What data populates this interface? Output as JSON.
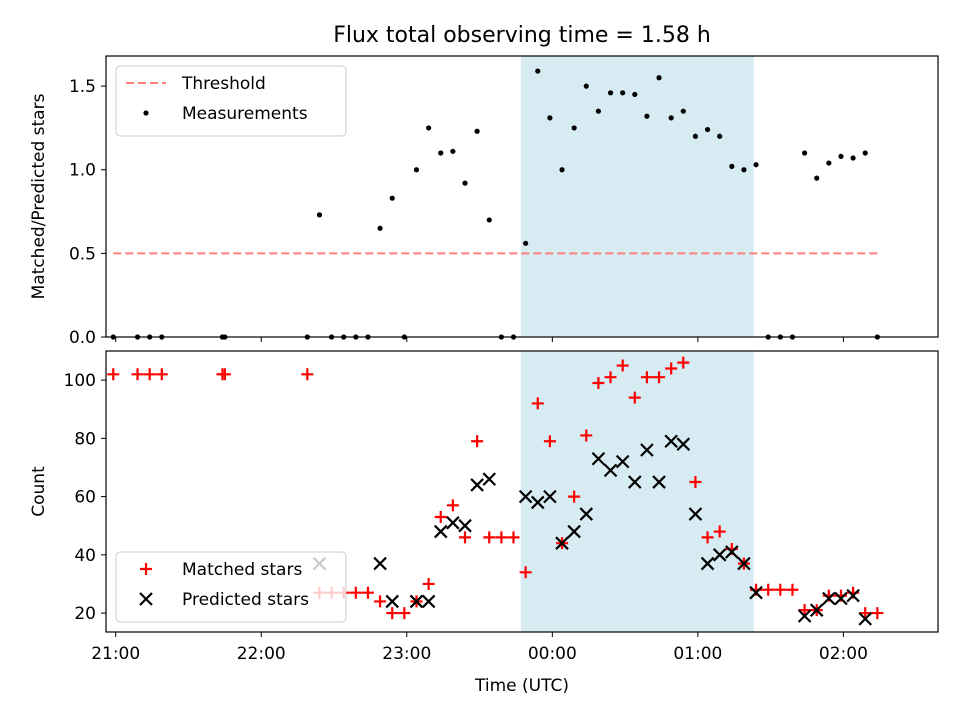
{
  "title": "Flux total observing time = 1.58 h",
  "chart_data": [
    {
      "type": "scatter",
      "ylabel": "Matched/Predicted stars",
      "xlabel": "",
      "xlim": [
        "20:56",
        "02:39"
      ],
      "ylim": [
        0,
        1.68
      ],
      "yticks": [
        0.0,
        0.5,
        1.0,
        1.5
      ],
      "ytick_labels": [
        "0.0",
        "0.5",
        "1.0",
        "1.5"
      ],
      "grid": false,
      "legend": "top-left",
      "shaded_interval": {
        "start": "23:47",
        "end": "01:23",
        "color": "#add8e6"
      },
      "threshold": {
        "name": "Threshold",
        "value": 0.5,
        "from": "20:59",
        "to": "02:15",
        "color": "#ff7f7f",
        "style": "dashed"
      },
      "series": [
        {
          "name": "Measurements",
          "marker": "dot",
          "color": "#000000",
          "points": [
            [
              "20:59",
              0
            ],
            [
              "21:09",
              0
            ],
            [
              "21:14",
              0
            ],
            [
              "21:19",
              0
            ],
            [
              "21:44",
              0
            ],
            [
              "21:45",
              0
            ],
            [
              "22:19",
              0
            ],
            [
              "22:24",
              0.73
            ],
            [
              "22:29",
              0
            ],
            [
              "22:34",
              0
            ],
            [
              "22:39",
              0
            ],
            [
              "22:44",
              0
            ],
            [
              "22:49",
              0.65
            ],
            [
              "22:54",
              0.83
            ],
            [
              "22:59",
              0
            ],
            [
              "23:04",
              1.0
            ],
            [
              "23:09",
              1.25
            ],
            [
              "23:14",
              1.1
            ],
            [
              "23:19",
              1.11
            ],
            [
              "23:24",
              0.92
            ],
            [
              "23:29",
              1.23
            ],
            [
              "23:34",
              0.7
            ],
            [
              "23:39",
              0
            ],
            [
              "23:44",
              0
            ],
            [
              "23:49",
              0.56
            ],
            [
              "23:54",
              1.59
            ],
            [
              "23:59",
              1.31
            ],
            [
              "00:04",
              1.0
            ],
            [
              "00:09",
              1.25
            ],
            [
              "00:14",
              1.5
            ],
            [
              "00:19",
              1.35
            ],
            [
              "00:24",
              1.46
            ],
            [
              "00:29",
              1.46
            ],
            [
              "00:34",
              1.45
            ],
            [
              "00:39",
              1.32
            ],
            [
              "00:44",
              1.55
            ],
            [
              "00:49",
              1.31
            ],
            [
              "00:54",
              1.35
            ],
            [
              "00:59",
              1.2
            ],
            [
              "01:04",
              1.24
            ],
            [
              "01:09",
              1.2
            ],
            [
              "01:14",
              1.02
            ],
            [
              "01:19",
              1.0
            ],
            [
              "01:24",
              1.03
            ],
            [
              "01:29",
              0
            ],
            [
              "01:34",
              0
            ],
            [
              "01:39",
              0
            ],
            [
              "01:44",
              1.1
            ],
            [
              "01:49",
              0.95
            ],
            [
              "01:54",
              1.04
            ],
            [
              "01:59",
              1.08
            ],
            [
              "02:04",
              1.07
            ],
            [
              "02:09",
              1.1
            ],
            [
              "02:14",
              0
            ]
          ]
        }
      ]
    },
    {
      "type": "scatter",
      "ylabel": "Count",
      "xlabel": "Time (UTC)",
      "xlim": [
        "20:56",
        "02:39"
      ],
      "ylim": [
        13.5,
        110
      ],
      "yticks": [
        20,
        40,
        60,
        80,
        100
      ],
      "ytick_labels": [
        "20",
        "40",
        "60",
        "80",
        "100"
      ],
      "xticks": [
        "21:00",
        "22:00",
        "23:00",
        "00:00",
        "01:00",
        "02:00"
      ],
      "xtick_labels": [
        "21:00",
        "22:00",
        "23:00",
        "00:00",
        "01:00",
        "02:00"
      ],
      "grid": false,
      "legend": "bottom-left",
      "shaded_interval": {
        "start": "23:47",
        "end": "01:23",
        "color": "#add8e6"
      },
      "series": [
        {
          "name": "Matched stars",
          "marker": "plus",
          "color": "#ff0000",
          "points": [
            [
              "20:59",
              102
            ],
            [
              "21:09",
              102
            ],
            [
              "21:14",
              102
            ],
            [
              "21:19",
              102
            ],
            [
              "21:44",
              102
            ],
            [
              "21:45",
              102
            ],
            [
              "22:19",
              102
            ],
            [
              "22:24",
              27
            ],
            [
              "22:29",
              27
            ],
            [
              "22:34",
              27
            ],
            [
              "22:39",
              27
            ],
            [
              "22:44",
              27
            ],
            [
              "22:49",
              24
            ],
            [
              "22:54",
              20
            ],
            [
              "22:59",
              20
            ],
            [
              "23:04",
              24
            ],
            [
              "23:09",
              30
            ],
            [
              "23:14",
              53
            ],
            [
              "23:19",
              57
            ],
            [
              "23:24",
              46
            ],
            [
              "23:29",
              79
            ],
            [
              "23:34",
              46
            ],
            [
              "23:39",
              46
            ],
            [
              "23:44",
              46
            ],
            [
              "23:49",
              34
            ],
            [
              "23:54",
              92
            ],
            [
              "23:59",
              79
            ],
            [
              "00:04",
              44
            ],
            [
              "00:09",
              60
            ],
            [
              "00:14",
              81
            ],
            [
              "00:19",
              99
            ],
            [
              "00:24",
              101
            ],
            [
              "00:29",
              105
            ],
            [
              "00:34",
              94
            ],
            [
              "00:39",
              101
            ],
            [
              "00:44",
              101
            ],
            [
              "00:49",
              104
            ],
            [
              "00:54",
              106
            ],
            [
              "00:59",
              65
            ],
            [
              "01:04",
              46
            ],
            [
              "01:09",
              48
            ],
            [
              "01:14",
              42
            ],
            [
              "01:19",
              37
            ],
            [
              "01:24",
              28
            ],
            [
              "01:29",
              28
            ],
            [
              "01:34",
              28
            ],
            [
              "01:39",
              28
            ],
            [
              "01:44",
              21
            ],
            [
              "01:49",
              21
            ],
            [
              "01:54",
              26
            ],
            [
              "01:59",
              26
            ],
            [
              "02:04",
              27
            ],
            [
              "02:09",
              20
            ],
            [
              "02:14",
              20
            ]
          ]
        },
        {
          "name": "Predicted stars",
          "marker": "x",
          "color": "#000000",
          "points": [
            [
              "22:24",
              37
            ],
            [
              "22:49",
              37
            ],
            [
              "22:54",
              24
            ],
            [
              "23:04",
              24
            ],
            [
              "23:09",
              24
            ],
            [
              "23:14",
              48
            ],
            [
              "23:19",
              51
            ],
            [
              "23:24",
              50
            ],
            [
              "23:29",
              64
            ],
            [
              "23:34",
              66
            ],
            [
              "23:49",
              60
            ],
            [
              "23:54",
              58
            ],
            [
              "23:59",
              60
            ],
            [
              "00:04",
              44
            ],
            [
              "00:09",
              48
            ],
            [
              "00:14",
              54
            ],
            [
              "00:19",
              73
            ],
            [
              "00:24",
              69
            ],
            [
              "00:29",
              72
            ],
            [
              "00:34",
              65
            ],
            [
              "00:39",
              76
            ],
            [
              "00:44",
              65
            ],
            [
              "00:49",
              79
            ],
            [
              "00:54",
              78
            ],
            [
              "00:59",
              54
            ],
            [
              "01:04",
              37
            ],
            [
              "01:09",
              40
            ],
            [
              "01:14",
              41
            ],
            [
              "01:19",
              37
            ],
            [
              "01:24",
              27
            ],
            [
              "01:44",
              19
            ],
            [
              "01:49",
              21
            ],
            [
              "01:54",
              25
            ],
            [
              "01:59",
              25
            ],
            [
              "02:04",
              26
            ],
            [
              "02:09",
              18
            ]
          ]
        }
      ]
    }
  ]
}
